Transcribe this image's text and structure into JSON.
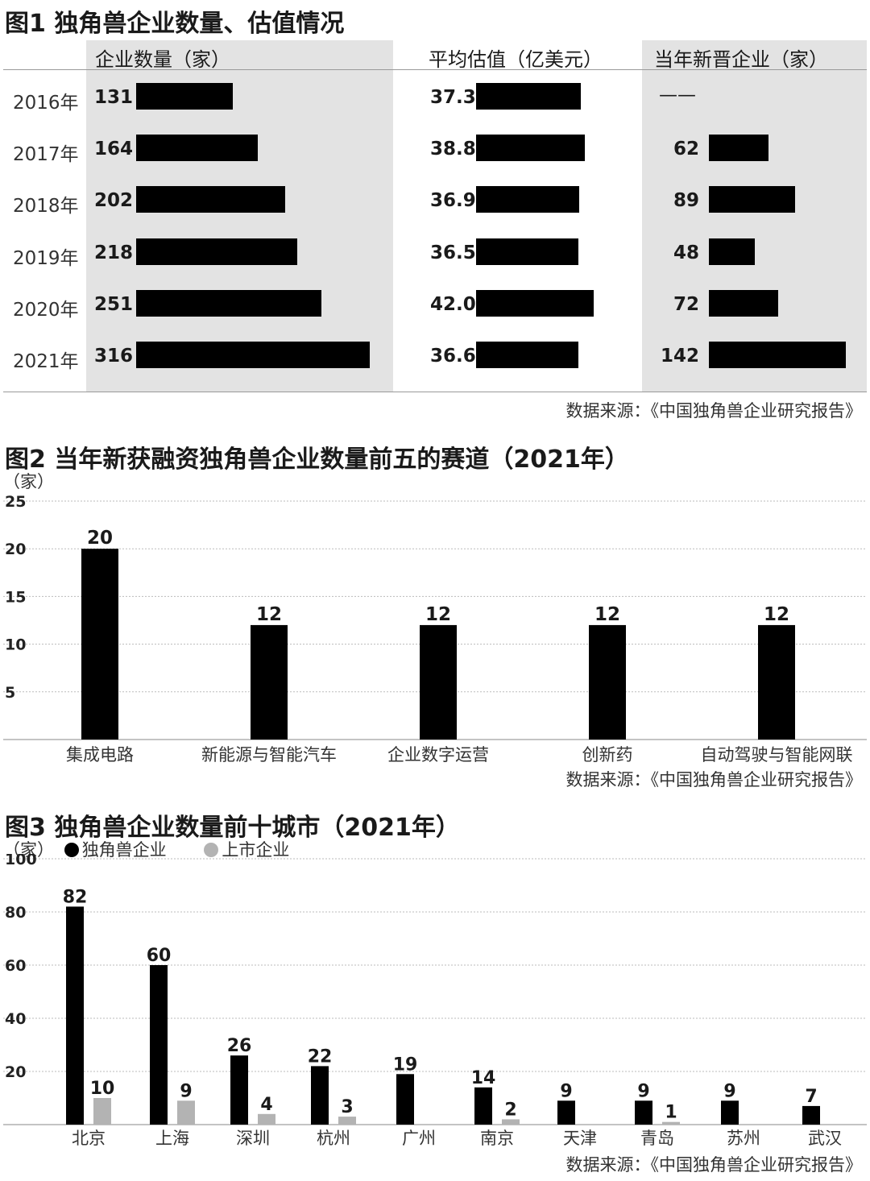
{
  "fig1": {
    "title": "图1 独角兽企业数量、估值情况",
    "col_headers": [
      "企业数量（家）",
      "平均估值（亿美元）",
      "当年新晋企业（家）"
    ],
    "source": "数据来源：《中国独角兽企业研究报告》"
  },
  "fig2": {
    "title": "图2  当年新获融资独角兽企业数量前五的赛道（2021年）",
    "unit": "（家）",
    "source": "数据来源：《中国独角兽企业研究报告》"
  },
  "fig3": {
    "title": "图3 独角兽企业数量前十城市（2021年）",
    "unit": "（家）",
    "legend": [
      "独角兽企业",
      "上市企业"
    ],
    "source": "数据来源：《中国独角兽企业研究报告》"
  },
  "chart_data": [
    {
      "type": "bar",
      "orientation": "horizontal",
      "categories": [
        "2016年",
        "2017年",
        "2018年",
        "2019年",
        "2020年",
        "2021年"
      ],
      "series": [
        {
          "name": "企业数量（家）",
          "values": [
            131,
            164,
            202,
            218,
            251,
            316
          ]
        },
        {
          "name": "平均估值（亿美元）",
          "values": [
            "37.3",
            "38.8",
            "36.9",
            "36.5",
            "42.0",
            "36.6"
          ]
        },
        {
          "name": "当年新晋企业（家）",
          "values": [
            null,
            62,
            89,
            48,
            72,
            142
          ],
          "missing_label": "——"
        }
      ]
    },
    {
      "type": "bar",
      "categories": [
        "集成电路",
        "新能源与智能汽车",
        "企业数字运营",
        "创新药",
        "自动驾驶与智能网联"
      ],
      "values": [
        20,
        12,
        12,
        12,
        12
      ],
      "ylim": [
        0,
        25
      ],
      "yticks": [
        5,
        10,
        15,
        20,
        25
      ],
      "grid": true,
      "color": "#000000"
    },
    {
      "type": "bar",
      "categories": [
        "北京",
        "上海",
        "深圳",
        "杭州",
        "广州",
        "南京",
        "天津",
        "青岛",
        "苏州",
        "武汉"
      ],
      "series": [
        {
          "name": "独角兽企业",
          "values": [
            82,
            60,
            26,
            22,
            19,
            14,
            9,
            9,
            9,
            7
          ],
          "color": "#000000"
        },
        {
          "name": "上市企业",
          "values": [
            10,
            9,
            4,
            3,
            null,
            2,
            null,
            1,
            null,
            null
          ],
          "color": "#b3b3b3"
        }
      ],
      "ylim": [
        0,
        100
      ],
      "yticks": [
        20,
        40,
        60,
        80,
        100
      ],
      "grid": true,
      "legend_position": "top-left"
    }
  ]
}
